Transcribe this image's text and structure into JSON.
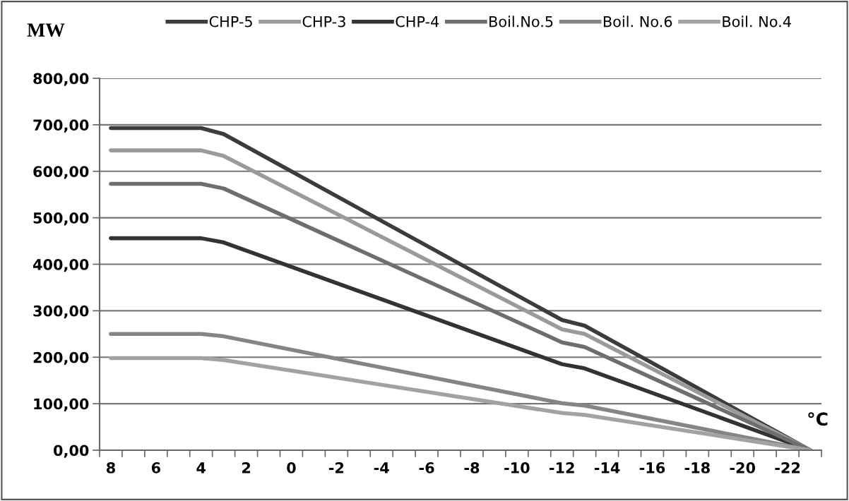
{
  "chart_data": {
    "type": "line",
    "ylabel": "MW",
    "xlabel": "°C",
    "x": [
      8,
      4,
      3,
      -12,
      -13,
      -23
    ],
    "series": [
      {
        "name": "CHP-5",
        "color": "#3c3c3c",
        "values": [
          693,
          693,
          680,
          280,
          268,
          0
        ]
      },
      {
        "name": "CHP-3",
        "color": "#9a9a9a",
        "values": [
          645,
          645,
          633,
          260,
          250,
          0
        ]
      },
      {
        "name": "CHP-4",
        "color": "#333333",
        "values": [
          456,
          456,
          447,
          185,
          176,
          0
        ]
      },
      {
        "name": "Boil.No.5",
        "color": "#6e6e6e",
        "values": [
          573,
          573,
          563,
          232,
          222,
          0
        ]
      },
      {
        "name": "Boil. No.6",
        "color": "#858585",
        "values": [
          250,
          250,
          245,
          101,
          96,
          0
        ]
      },
      {
        "name": "Boil. No.4",
        "color": "#a2a2a2",
        "values": [
          198,
          198,
          194,
          80,
          76,
          0
        ]
      }
    ],
    "xlim": [
      8.5,
      -23.5
    ],
    "xticks": [
      8,
      6,
      4,
      2,
      0,
      -2,
      -4,
      -6,
      -8,
      -10,
      -12,
      -14,
      -16,
      -18,
      -20,
      -22,
      {
        "value": 8.5,
        "label": null
      },
      {
        "value": 7.5,
        "label": null
      },
      {
        "value": 6.5,
        "label": null
      },
      {
        "value": 5.5,
        "label": null
      },
      {
        "value": 4.5,
        "label": null
      },
      {
        "value": 3.5,
        "label": null
      },
      {
        "value": 2.5,
        "label": null
      },
      {
        "value": 1.5,
        "label": null
      },
      {
        "value": 0.5,
        "label": null
      },
      {
        "value": -0.5,
        "label": null
      },
      {
        "value": -1.5,
        "label": null
      },
      {
        "value": -2.5,
        "label": null
      },
      {
        "value": -3.5,
        "label": null
      },
      {
        "value": -4.5,
        "label": null
      },
      {
        "value": -5.5,
        "label": null
      },
      {
        "value": -6.5,
        "label": null
      },
      {
        "value": -7.5,
        "label": null
      },
      {
        "value": -8.5,
        "label": null
      },
      {
        "value": -9.5,
        "label": null
      },
      {
        "value": -10.5,
        "label": null
      },
      {
        "value": -11.5,
        "label": null
      },
      {
        "value": -12.5,
        "label": null
      },
      {
        "value": -13.5,
        "label": null
      },
      {
        "value": -14.5,
        "label": null
      },
      {
        "value": -15.5,
        "label": null
      },
      {
        "value": -16.5,
        "label": null
      },
      {
        "value": -17.5,
        "label": null
      },
      {
        "value": -18.5,
        "label": null
      },
      {
        "value": -19.5,
        "label": null
      },
      {
        "value": -20.5,
        "label": null
      },
      {
        "value": -21.5,
        "label": null
      },
      {
        "value": -22.5,
        "label": null
      },
      {
        "value": -23.5,
        "label": null
      }
    ],
    "ylim": [
      0,
      800
    ],
    "yticks": [
      {
        "value": 0,
        "label": "0,00"
      },
      {
        "value": 100,
        "label": "100,00"
      },
      {
        "value": 200,
        "label": "200,00"
      },
      {
        "value": 300,
        "label": "300,00"
      },
      {
        "value": 400,
        "label": "400,00"
      },
      {
        "value": 500,
        "label": "500,00"
      },
      {
        "value": 600,
        "label": "600,00"
      },
      {
        "value": 700,
        "label": "700,00"
      },
      {
        "value": 800,
        "label": "800,00"
      }
    ],
    "grid": "y",
    "legend": "top",
    "marker": "none",
    "line_style": "solid"
  }
}
